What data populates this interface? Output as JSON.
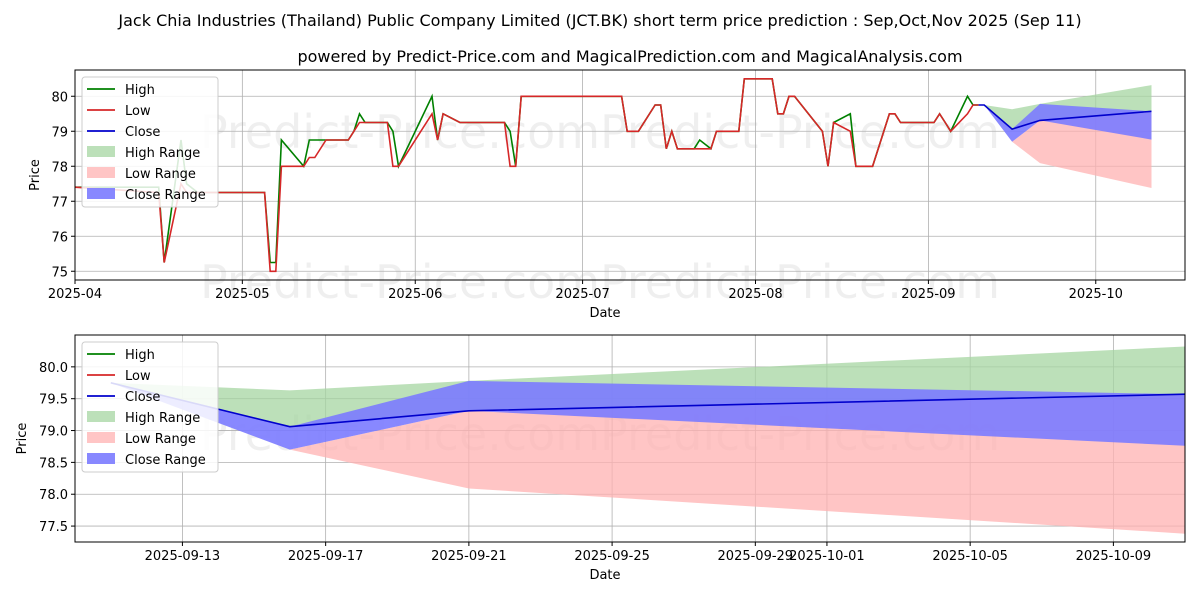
{
  "title": "Jack Chia Industries (Thailand) Public Company Limited (JCT.BK) short term price prediction : Sep,Oct,Nov 2025 (Sep 11)",
  "subtitle": "powered by Predict-Price.com and MagicalPrediction.com and MagicalAnalysis.com",
  "watermark": "Predict-Price.com",
  "colors": {
    "high": "#008000",
    "low": "#d62728",
    "close": "#0000cc",
    "high_range": "#a6d5a1",
    "low_range": "#ffb2b2",
    "close_range": "#7b7bff"
  },
  "chart_data": [
    {
      "type": "line",
      "xlabel": "Date",
      "ylabel": "Price",
      "xlim": [
        "2025-04-01",
        "2025-10-17"
      ],
      "ylim": [
        74.75,
        80.75
      ],
      "x_ticks": [
        "2025-04",
        "2025-05",
        "2025-06",
        "2025-07",
        "2025-08",
        "2025-09",
        "2025-10"
      ],
      "y_ticks": [
        75,
        76,
        77,
        78,
        79,
        80
      ],
      "grid": true,
      "legend_position": "top-left",
      "legend": [
        "High",
        "Low",
        "Close",
        "High Range",
        "Low Range",
        "Close Range"
      ],
      "series": [
        {
          "name": "High",
          "x": [
            "2025-04-01",
            "2025-04-16",
            "2025-04-17",
            "2025-04-20",
            "2025-04-21",
            "2025-04-23",
            "2025-04-25",
            "2025-04-28",
            "2025-04-30",
            "2025-05-02",
            "2025-05-05",
            "2025-05-06",
            "2025-05-07",
            "2025-05-08",
            "2025-05-12",
            "2025-05-13",
            "2025-05-14",
            "2025-05-16",
            "2025-05-19",
            "2025-05-20",
            "2025-05-21",
            "2025-05-22",
            "2025-05-23",
            "2025-05-26",
            "2025-05-27",
            "2025-05-28",
            "2025-05-29",
            "2025-06-04",
            "2025-06-05",
            "2025-06-06",
            "2025-06-09",
            "2025-06-16",
            "2025-06-17",
            "2025-06-18",
            "2025-06-19",
            "2025-06-20",
            "2025-07-08",
            "2025-07-09",
            "2025-07-11",
            "2025-07-14",
            "2025-07-15",
            "2025-07-16",
            "2025-07-17",
            "2025-07-18",
            "2025-07-21",
            "2025-07-22",
            "2025-07-24",
            "2025-07-25",
            "2025-07-29",
            "2025-07-30",
            "2025-07-31",
            "2025-08-04",
            "2025-08-05",
            "2025-08-06",
            "2025-08-07",
            "2025-08-08",
            "2025-08-13",
            "2025-08-14",
            "2025-08-15",
            "2025-08-18",
            "2025-08-19",
            "2025-08-20",
            "2025-08-21",
            "2025-08-22",
            "2025-08-25",
            "2025-08-26",
            "2025-08-27",
            "2025-09-01",
            "2025-09-02",
            "2025-09-03",
            "2025-09-04",
            "2025-09-05",
            "2025-09-08",
            "2025-09-09",
            "2025-09-10"
          ],
          "values": [
            77.4,
            77.4,
            75.25,
            78.75,
            77.5,
            77.25,
            77.25,
            77.25,
            77.25,
            77.25,
            77.25,
            75.25,
            75.25,
            78.75,
            78.0,
            78.75,
            78.75,
            78.75,
            78.75,
            78.75,
            79.0,
            79.5,
            79.25,
            79.25,
            79.25,
            79.0,
            78.0,
            80.0,
            78.75,
            79.5,
            79.25,
            79.25,
            79.25,
            79.0,
            78.0,
            80.0,
            80.0,
            79.0,
            79.0,
            79.75,
            79.75,
            78.5,
            79.0,
            78.5,
            78.5,
            78.75,
            78.5,
            79.0,
            79.0,
            80.5,
            80.5,
            80.5,
            79.5,
            79.5,
            80.0,
            80.0,
            79.0,
            78.0,
            79.25,
            79.5,
            78.0,
            78.0,
            78.0,
            78.0,
            79.5,
            79.5,
            79.25,
            79.25,
            79.25,
            79.5,
            79.25,
            79.0,
            80.0,
            79.75,
            79.75
          ]
        },
        {
          "name": "Low",
          "x": [
            "2025-04-01",
            "2025-04-16",
            "2025-04-17",
            "2025-04-20",
            "2025-04-21",
            "2025-04-23",
            "2025-04-25",
            "2025-04-28",
            "2025-04-30",
            "2025-05-02",
            "2025-05-05",
            "2025-05-06",
            "2025-05-07",
            "2025-05-08",
            "2025-05-12",
            "2025-05-13",
            "2025-05-14",
            "2025-05-16",
            "2025-05-19",
            "2025-05-20",
            "2025-05-21",
            "2025-05-22",
            "2025-05-23",
            "2025-05-26",
            "2025-05-27",
            "2025-05-28",
            "2025-05-29",
            "2025-06-04",
            "2025-06-05",
            "2025-06-06",
            "2025-06-09",
            "2025-06-16",
            "2025-06-17",
            "2025-06-18",
            "2025-06-19",
            "2025-06-20",
            "2025-07-08",
            "2025-07-09",
            "2025-07-11",
            "2025-07-14",
            "2025-07-15",
            "2025-07-16",
            "2025-07-17",
            "2025-07-18",
            "2025-07-21",
            "2025-07-22",
            "2025-07-24",
            "2025-07-25",
            "2025-07-29",
            "2025-07-30",
            "2025-07-31",
            "2025-08-04",
            "2025-08-05",
            "2025-08-06",
            "2025-08-07",
            "2025-08-08",
            "2025-08-13",
            "2025-08-14",
            "2025-08-15",
            "2025-08-18",
            "2025-08-19",
            "2025-08-20",
            "2025-08-21",
            "2025-08-22",
            "2025-08-25",
            "2025-08-26",
            "2025-08-27",
            "2025-09-01",
            "2025-09-02",
            "2025-09-03",
            "2025-09-04",
            "2025-09-05",
            "2025-09-08",
            "2025-09-09",
            "2025-09-10"
          ],
          "values": [
            77.4,
            77.25,
            75.25,
            77.5,
            77.25,
            77.25,
            77.25,
            77.25,
            77.25,
            77.25,
            77.25,
            75.0,
            75.0,
            78.0,
            78.0,
            78.25,
            78.25,
            78.75,
            78.75,
            78.75,
            79.0,
            79.25,
            79.25,
            79.25,
            79.25,
            78.0,
            78.0,
            79.5,
            78.75,
            79.5,
            79.25,
            79.25,
            79.25,
            78.0,
            78.0,
            80.0,
            80.0,
            79.0,
            79.0,
            79.75,
            79.75,
            78.5,
            79.0,
            78.5,
            78.5,
            78.5,
            78.5,
            79.0,
            79.0,
            80.5,
            80.5,
            80.5,
            79.5,
            79.5,
            80.0,
            80.0,
            79.0,
            78.0,
            79.25,
            79.0,
            78.0,
            78.0,
            78.0,
            78.0,
            79.5,
            79.5,
            79.25,
            79.25,
            79.25,
            79.5,
            79.25,
            79.0,
            79.5,
            79.75,
            79.75
          ]
        },
        {
          "name": "Close",
          "x": [
            "2025-09-10",
            "2025-09-11",
            "2025-09-16",
            "2025-09-21",
            "2025-10-11"
          ],
          "values": [
            79.75,
            79.75,
            79.06,
            79.31,
            79.57
          ]
        },
        {
          "name": "High Range",
          "x": [
            "2025-09-10",
            "2025-09-11",
            "2025-09-16",
            "2025-09-21",
            "2025-10-11"
          ],
          "upper": [
            79.75,
            79.75,
            79.63,
            79.78,
            80.32
          ],
          "lower": [
            79.75,
            79.75,
            79.06,
            79.31,
            79.57
          ]
        },
        {
          "name": "Low Range",
          "x": [
            "2025-09-10",
            "2025-09-11",
            "2025-09-16",
            "2025-09-21",
            "2025-10-11"
          ],
          "upper": [
            79.75,
            79.75,
            78.7,
            79.31,
            79.57
          ],
          "lower": [
            79.75,
            79.75,
            78.7,
            78.09,
            77.38
          ]
        },
        {
          "name": "Close Range",
          "x": [
            "2025-09-10",
            "2025-09-11",
            "2025-09-16",
            "2025-09-21",
            "2025-10-11"
          ],
          "upper": [
            79.75,
            79.75,
            79.06,
            79.78,
            79.57
          ],
          "lower": [
            79.75,
            79.75,
            78.7,
            79.31,
            78.76
          ]
        }
      ]
    },
    {
      "type": "line",
      "xlabel": "Date",
      "ylabel": "Price",
      "xlim": [
        "2025-09-10",
        "2025-10-11"
      ],
      "ylim": [
        77.25,
        80.5
      ],
      "x_ticks": [
        "2025-09-13",
        "2025-09-17",
        "2025-09-21",
        "2025-09-25",
        "2025-09-29",
        "2025-10-01",
        "2025-10-05",
        "2025-10-09"
      ],
      "y_ticks": [
        77.5,
        78.0,
        78.5,
        79.0,
        79.5,
        80.0
      ],
      "grid": true,
      "legend_position": "top-left",
      "legend": [
        "High",
        "Low",
        "Close",
        "High Range",
        "Low Range",
        "Close Range"
      ],
      "series": [
        {
          "name": "Close",
          "x": [
            "2025-09-11",
            "2025-09-16",
            "2025-09-21",
            "2025-10-11"
          ],
          "values": [
            79.75,
            79.06,
            79.31,
            79.57
          ]
        },
        {
          "name": "High Range",
          "x": [
            "2025-09-11",
            "2025-09-16",
            "2025-09-21",
            "2025-10-11"
          ],
          "upper": [
            79.75,
            79.63,
            79.78,
            80.32
          ],
          "lower": [
            79.75,
            79.06,
            79.31,
            79.57
          ]
        },
        {
          "name": "Low Range",
          "x": [
            "2025-09-11",
            "2025-09-16",
            "2025-09-21",
            "2025-10-11"
          ],
          "upper": [
            79.75,
            78.7,
            79.31,
            79.57
          ],
          "lower": [
            79.75,
            78.7,
            78.09,
            77.38
          ]
        },
        {
          "name": "Close Range",
          "x": [
            "2025-09-11",
            "2025-09-16",
            "2025-09-21",
            "2025-10-11"
          ],
          "upper": [
            79.75,
            79.06,
            79.78,
            79.57
          ],
          "lower": [
            79.75,
            78.7,
            79.31,
            78.76
          ]
        }
      ]
    }
  ]
}
